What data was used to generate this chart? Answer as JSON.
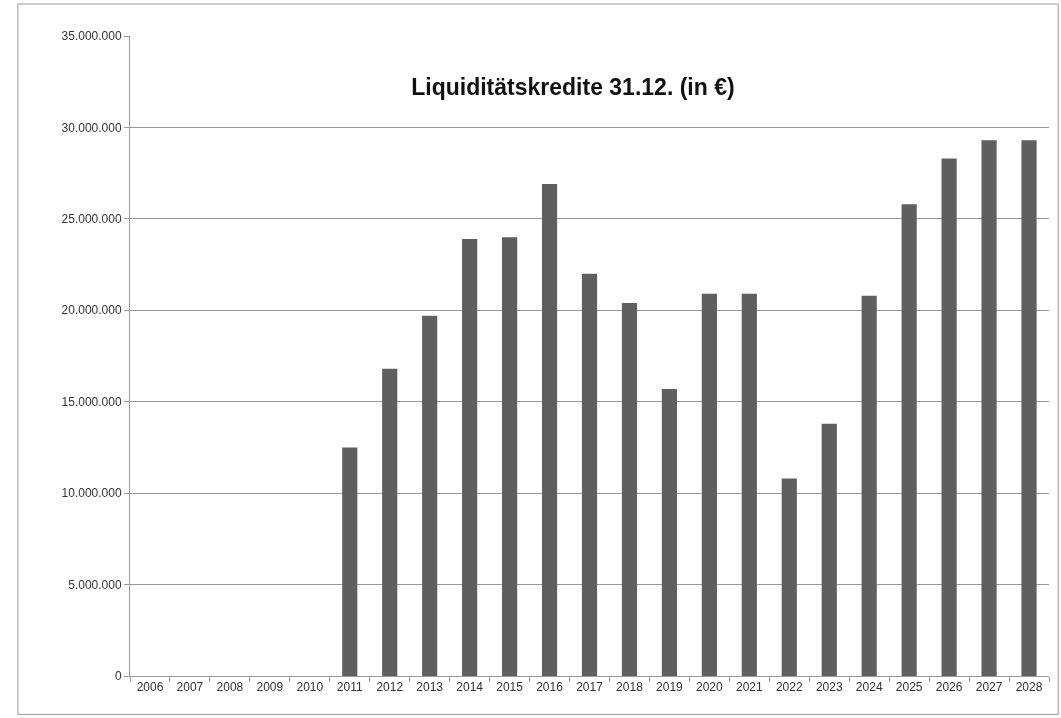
{
  "chart_data": {
    "type": "bar",
    "title": "Liquiditätskredite 31.12. (in €)",
    "categories": [
      "2006",
      "2007",
      "2008",
      "2009",
      "2010",
      "2011",
      "2012",
      "2013",
      "2014",
      "2015",
      "2016",
      "2017",
      "2018",
      "2019",
      "2020",
      "2021",
      "2022",
      "2023",
      "2024",
      "2025",
      "2026",
      "2027",
      "2028"
    ],
    "values": [
      null,
      null,
      null,
      null,
      null,
      12500000,
      16800000,
      19700000,
      23900000,
      24000000,
      26900000,
      22000000,
      20400000,
      15700000,
      20900000,
      20900000,
      10800000,
      13800000,
      20800000,
      25800000,
      28300000,
      29300000,
      29300000
    ],
    "color": "#5f5f5f",
    "ylim": [
      0,
      35000000
    ],
    "yticks": [
      0,
      {
        "value": 5000000,
        "label": "5.000.000"
      },
      {
        "value": 10000000,
        "label": "10.000.000"
      },
      {
        "value": 15000000,
        "label": "15.000.000"
      },
      {
        "value": 20000000,
        "label": "20.000.000"
      },
      {
        "value": 25000000,
        "label": "25.000.000"
      },
      {
        "value": 30000000,
        "label": "30.000.000"
      },
      {
        "value": 35000000,
        "label": "35.000.000"
      }
    ],
    "grid": "y"
  }
}
